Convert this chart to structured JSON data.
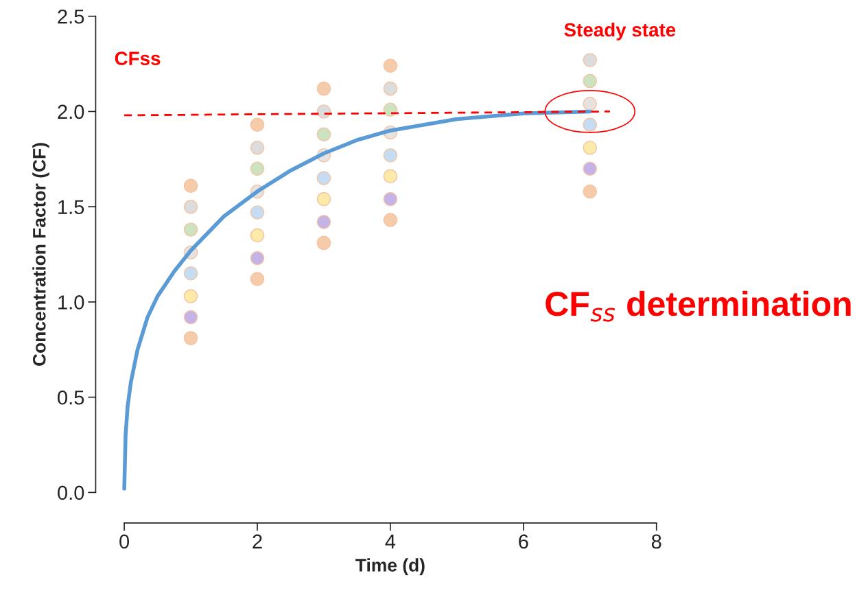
{
  "chart_data": {
    "type": "scatter",
    "xlabel": "Time (d)",
    "ylabel": "Concentration Factor (CF)",
    "x": [
      1,
      2,
      3,
      4,
      7
    ],
    "xlim": [
      0,
      8
    ],
    "xticks": [
      0,
      2,
      4,
      6,
      8
    ],
    "ylim": [
      0,
      2.5
    ],
    "yticks": [
      {
        "value": 0,
        "label": "0.0"
      },
      0.5,
      {
        "value": 1,
        "label": "1.0"
      },
      1.5,
      {
        "value": 2,
        "label": "2.0"
      },
      2.5
    ],
    "series": [
      {
        "marker": "circle",
        "color": "#f5cbaa",
        "values": [
          1.61,
          1.93,
          2.12,
          2.24,
          null
        ]
      },
      {
        "marker": "circle",
        "color": "#dcdcdc",
        "values": [
          1.5,
          1.81,
          2.0,
          2.12,
          2.27
        ]
      },
      {
        "marker": "circle",
        "color": "#cde3c0",
        "values": [
          1.38,
          1.7,
          1.88,
          2.01,
          2.16
        ]
      },
      {
        "marker": "circle",
        "color": "#e6e2e0",
        "values": [
          1.26,
          1.58,
          1.77,
          1.89,
          2.04
        ]
      },
      {
        "marker": "circle",
        "color": "#c5dcf2",
        "values": [
          1.15,
          1.47,
          1.65,
          1.77,
          1.93
        ]
      },
      {
        "marker": "circle",
        "color": "#fde9a8",
        "values": [
          1.03,
          1.35,
          1.54,
          1.66,
          1.81
        ]
      },
      {
        "marker": "circle",
        "color": "#c5b3e8",
        "values": [
          0.92,
          1.23,
          1.42,
          1.54,
          1.7
        ]
      },
      {
        "marker": "circle",
        "color": "#f5cbaa",
        "values": [
          0.81,
          1.12,
          1.31,
          1.43,
          1.58
        ]
      },
      {
        "type": "line",
        "marker": "none",
        "color": "#5b9bd5",
        "line_style": "solid",
        "x": [
          0,
          0.02,
          0.05,
          0.1,
          0.2,
          0.35,
          0.5,
          0.75,
          1,
          1.5,
          2,
          2.5,
          3,
          3.5,
          4,
          5,
          6,
          7
        ],
        "values": [
          0.02,
          0.3,
          0.45,
          0.58,
          0.75,
          0.92,
          1.03,
          1.16,
          1.27,
          1.45,
          1.58,
          1.69,
          1.78,
          1.85,
          1.9,
          1.96,
          1.99,
          2.0
        ]
      },
      {
        "type": "line",
        "marker": "none",
        "color": "#ff0000",
        "line_style": "dashed",
        "x": [
          0,
          7.3
        ],
        "values": [
          1.98,
          2.0
        ]
      }
    ],
    "annotations": [
      "Steady state",
      "CFss",
      "CF$_{ss}$ determination"
    ]
  }
}
